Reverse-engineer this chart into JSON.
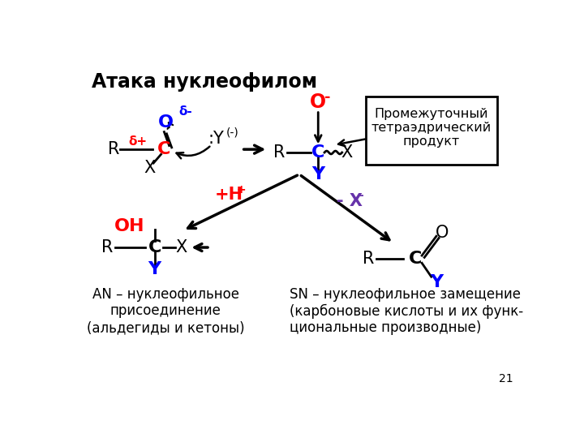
{
  "title": "Атака нуклеофилом",
  "bg_color": "#ffffff",
  "page_number": "21",
  "box_text": "Промежуточный\nтетраэдрический\nпродукт",
  "label_AN": "AN – нуклеофильное\nприсоединение\n(альдегиды и кетоны)",
  "label_SN": "SN – нуклеофильное замещение\n(карбоновые кислоты и их функ-\nциональные производные)"
}
